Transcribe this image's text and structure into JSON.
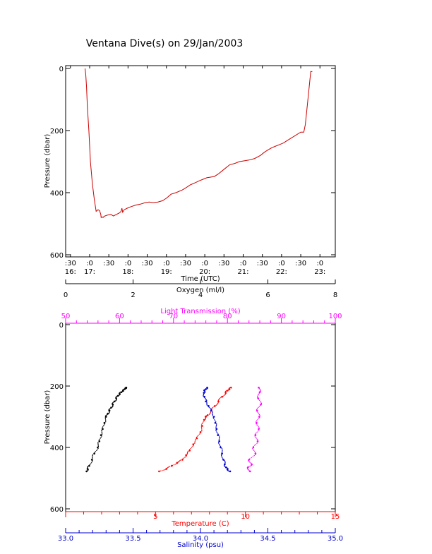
{
  "page": {
    "title": "Ventana Dive(s) on 29/Jan/2003"
  },
  "colors": {
    "axis": "#000000",
    "oxygen": "#000000",
    "transmission": "#ff00ff",
    "temperature": "#ff0000",
    "salinity": "#0000cc",
    "track": "#cc0000"
  },
  "chart_data": [
    {
      "id": "dive-track",
      "type": "line",
      "title": "Ventana Dive(s) on 29/Jan/2003",
      "xlabel": "Time (UTC)",
      "ylabel": "Pressure (dbar)",
      "ylim": [
        600,
        0
      ],
      "y_ticks": [
        "0",
        "200",
        "400",
        "600"
      ],
      "x_ticks": [
        {
          "minute": ":30",
          "hour": "16:"
        },
        {
          "minute": ":0",
          "hour": "17:"
        },
        {
          "minute": ":30",
          "hour": ""
        },
        {
          "minute": ":0",
          "hour": "18:"
        },
        {
          "minute": ":30",
          "hour": ""
        },
        {
          "minute": ":0",
          "hour": "19:"
        },
        {
          "minute": ":30",
          "hour": ""
        },
        {
          "minute": ":0",
          "hour": "20:"
        },
        {
          "minute": ":30",
          "hour": ""
        },
        {
          "minute": ":0",
          "hour": "21:"
        },
        {
          "minute": ":30",
          "hour": ""
        },
        {
          "minute": ":0",
          "hour": "22:"
        },
        {
          "minute": ":30",
          "hour": ""
        },
        {
          "minute": ":0",
          "hour": "23:"
        }
      ],
      "xlim": [
        16.375,
        23.4
      ],
      "series": [
        {
          "x": [
            16.88,
            16.9,
            16.92,
            16.94,
            16.98,
            17.02,
            17.07,
            17.12,
            17.17,
            17.22,
            17.26,
            17.29,
            17.3,
            17.32,
            17.35,
            17.38,
            17.42,
            17.47,
            17.55,
            17.62,
            17.7,
            17.78,
            17.82,
            17.84,
            17.86,
            17.9,
            17.98,
            18.08,
            18.2,
            18.32,
            18.45,
            18.55,
            18.65,
            18.78,
            18.9,
            19.0,
            19.12,
            19.25,
            19.4,
            19.5,
            19.62,
            19.75,
            19.85,
            19.95,
            20.05,
            20.15,
            20.25,
            20.35,
            20.45,
            20.55,
            20.65,
            20.78,
            20.9,
            21.0,
            21.15,
            21.3,
            21.45,
            21.55,
            21.65,
            21.75,
            21.85,
            21.95,
            22.05,
            22.15,
            22.5,
            22.58,
            22.62,
            22.67,
            22.72,
            22.76,
            22.8
          ],
          "y": [
            0,
            20,
            60,
            120,
            200,
            300,
            370,
            420,
            460,
            455,
            458,
            470,
            480,
            478,
            480,
            476,
            474,
            472,
            470,
            475,
            470,
            465,
            460,
            450,
            463,
            455,
            450,
            445,
            440,
            437,
            432,
            430,
            432,
            430,
            426,
            418,
            405,
            400,
            392,
            385,
            375,
            368,
            362,
            357,
            352,
            350,
            348,
            340,
            330,
            320,
            310,
            306,
            300,
            298,
            295,
            290,
            280,
            270,
            262,
            255,
            250,
            245,
            240,
            232,
            205,
            205,
            180,
            120,
            60,
            10,
            10
          ]
        }
      ]
    },
    {
      "id": "profiles",
      "type": "scatter",
      "ylabel": "Pressure (dbar)",
      "ylim": [
        600,
        0
      ],
      "y_ticks": [
        "0",
        "200",
        "400",
        "600"
      ],
      "axes": {
        "oxygen": {
          "label": "Oxygen (ml/l)",
          "range": [
            0,
            8
          ],
          "ticks": [
            "0",
            "2",
            "4",
            "6",
            "8"
          ]
        },
        "transmission": {
          "label": "Light Transmission (%)",
          "range": [
            50,
            100
          ],
          "ticks": [
            "50",
            "60",
            "70",
            "80",
            "90",
            "100"
          ]
        },
        "temperature": {
          "label": "Temperature (C)",
          "range": [
            0,
            15
          ],
          "ticks": [
            "5",
            "10",
            "15"
          ]
        },
        "salinity": {
          "label": "Salinity (psu)",
          "range": [
            33.0,
            35.0
          ],
          "ticks": [
            "33.0",
            "33.5",
            "34.0",
            "34.5",
            "35.0"
          ]
        }
      },
      "series": [
        {
          "name": "Oxygen",
          "x": [
            0.62,
            0.65,
            0.7,
            0.78,
            0.85,
            0.95,
            1.0,
            1.05,
            1.1,
            1.15,
            1.2,
            1.25,
            1.3,
            1.35,
            1.4,
            1.45,
            1.5,
            1.55,
            1.6,
            1.65,
            1.7,
            1.75,
            1.78,
            1.8
          ],
          "y": [
            478,
            470,
            460,
            440,
            420,
            400,
            380,
            360,
            340,
            320,
            300,
            290,
            280,
            270,
            260,
            250,
            240,
            232,
            225,
            220,
            215,
            210,
            207,
            205
          ]
        },
        {
          "name": "Temperature",
          "x": [
            5.2,
            5.6,
            5.9,
            6.2,
            6.5,
            6.7,
            6.9,
            7.1,
            7.3,
            7.5,
            7.6,
            7.7,
            7.8,
            7.9,
            8.1,
            8.3,
            8.5,
            8.7,
            8.9,
            9.0,
            9.1,
            9.2
          ],
          "y": [
            478,
            470,
            460,
            450,
            440,
            425,
            410,
            390,
            370,
            350,
            330,
            310,
            300,
            295,
            280,
            265,
            250,
            235,
            222,
            215,
            210,
            205
          ]
        },
        {
          "name": "Salinity",
          "x": [
            34.05,
            34.04,
            34.03,
            34.025,
            34.03,
            34.04,
            34.06,
            34.08,
            34.1,
            34.11,
            34.12,
            34.13,
            34.14,
            34.15,
            34.16,
            34.17,
            34.18,
            34.19,
            34.2,
            34.22
          ],
          "y": [
            205,
            210,
            215,
            222,
            235,
            250,
            265,
            280,
            300,
            320,
            340,
            360,
            380,
            400,
            420,
            440,
            455,
            465,
            472,
            478
          ]
        },
        {
          "name": "Light Transmission",
          "x": [
            85.8,
            86.0,
            85.7,
            86.2,
            85.5,
            85.9,
            85.4,
            85.8,
            85.2,
            85.6,
            84.8,
            85.2,
            84.0,
            84.5,
            83.8,
            84.2
          ],
          "y": [
            205,
            220,
            240,
            260,
            280,
            300,
            320,
            340,
            360,
            380,
            400,
            420,
            440,
            455,
            465,
            478
          ]
        }
      ]
    }
  ]
}
